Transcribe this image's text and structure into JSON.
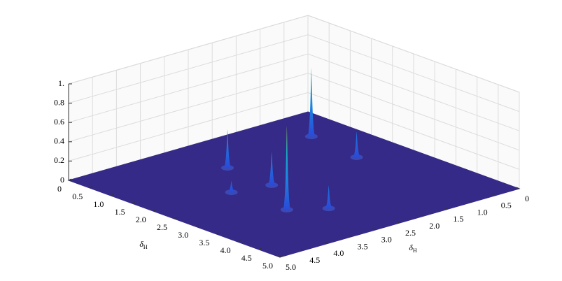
{
  "chart_data": {
    "type": "surface",
    "xlabel": {
      "text": "δ",
      "subscript": "H"
    },
    "ylabel": {
      "text": "δ",
      "subscript": "H"
    },
    "xlim": [
      0,
      5
    ],
    "ylim": [
      0,
      5
    ],
    "zlim": [
      0,
      1
    ],
    "xticks": [
      0,
      0.5,
      {
        "value": 1,
        "label": "1.0"
      },
      1.5,
      {
        "value": 2,
        "label": "2.0"
      },
      2.5,
      {
        "value": 3,
        "label": "3.0"
      },
      3.5,
      {
        "value": 4,
        "label": "4.0"
      },
      4.5,
      {
        "value": 5,
        "label": "5.0"
      }
    ],
    "yticks": [
      0,
      0.5,
      {
        "value": 1,
        "label": "1.0"
      },
      1.5,
      {
        "value": 2,
        "label": "2.0"
      },
      2.5,
      {
        "value": 3,
        "label": "3.0"
      },
      3.5,
      {
        "value": 4,
        "label": "4.0"
      },
      4.5,
      {
        "value": 5,
        "label": "5.0"
      }
    ],
    "zticks": [
      0,
      0.2,
      0.4,
      0.6,
      0.8,
      {
        "value": 1,
        "label": "1."
      }
    ],
    "grid": true,
    "surface_color": "#352a87",
    "peaks": {
      "x": [
        0.93,
        3.34,
        1.2,
        2.29,
        2.16,
        3.73,
        2.13
      ],
      "y": [
        0.75,
        3.39,
        2.74,
        2.78,
        0.89,
        2.86,
        3.48
      ],
      "z": [
        0.72,
        0.87,
        0.4,
        0.35,
        0.27,
        0.24,
        0.12
      ]
    }
  }
}
